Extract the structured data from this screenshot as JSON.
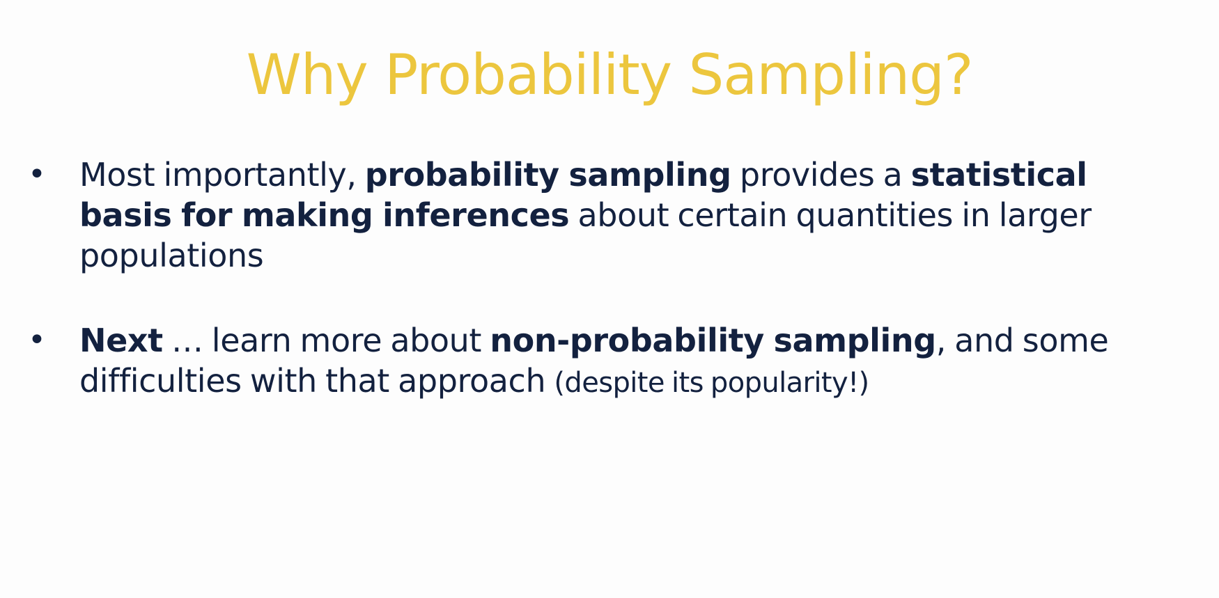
{
  "colors": {
    "title": "#ecc63e",
    "body_text": "#13213f",
    "background": "#fdfdfd"
  },
  "slide": {
    "title": "Why Probability Sampling?",
    "bullets": [
      {
        "marker": "•",
        "segments": {
          "t1": "Most importantly, ",
          "b1": "probability sampling",
          "t2": " provides a ",
          "b2": "statistical basis for making inferences",
          "t3": " about certain quantities in larger populations"
        }
      },
      {
        "marker": "•",
        "segments": {
          "b1": "Next",
          "t1": " … learn more about ",
          "b2": "non-probability sampling",
          "t2": ", and some difficulties with that approach ",
          "aside": "(despite its popularity!)"
        }
      }
    ]
  }
}
